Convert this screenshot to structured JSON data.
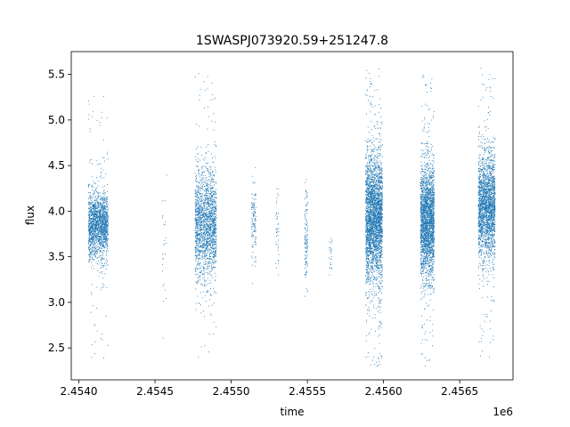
{
  "chart_data": {
    "type": "scatter",
    "title": "1SWASPJ073920.59+251247.8",
    "xlabel": "time",
    "ylabel": "flux",
    "x_offset_label": "1e6",
    "xlim": [
      2453950,
      2456850
    ],
    "ylim": [
      2.15,
      5.75
    ],
    "x_ticks": [
      2454000,
      2454500,
      2455000,
      2455500,
      2456000,
      2456500
    ],
    "x_tick_labels": [
      "2.4540",
      "2.4545",
      "2.4550",
      "2.4555",
      "2.4560",
      "2.4565"
    ],
    "y_ticks": [
      2.5,
      3.0,
      3.5,
      4.0,
      4.5,
      5.0,
      5.5
    ],
    "y_tick_labels": [
      "2.5",
      "3.0",
      "3.5",
      "4.0",
      "4.5",
      "5.0",
      "5.5"
    ],
    "grid": false,
    "legend": "none",
    "marker_color": "#1f77b4",
    "clusters": [
      {
        "x_range": [
          2454060,
          2454190
        ],
        "center": 3.85,
        "spread": 0.18,
        "y_min": 2.35,
        "y_max": 5.3,
        "count": 1700
      },
      {
        "x_range": [
          2454545,
          2454575
        ],
        "center": 3.7,
        "spread": 0.4,
        "y_min": 2.3,
        "y_max": 4.6,
        "count": 25
      },
      {
        "x_range": [
          2454760,
          2454900
        ],
        "center": 3.85,
        "spread": 0.3,
        "y_min": 2.4,
        "y_max": 5.58,
        "count": 1800
      },
      {
        "x_range": [
          2455130,
          2455160
        ],
        "center": 3.9,
        "spread": 0.2,
        "y_min": 3.15,
        "y_max": 4.5,
        "count": 120
      },
      {
        "x_range": [
          2455290,
          2455310
        ],
        "center": 3.85,
        "spread": 0.3,
        "y_min": 3.0,
        "y_max": 4.25,
        "count": 40
      },
      {
        "x_range": [
          2455480,
          2455500
        ],
        "center": 3.7,
        "spread": 0.25,
        "y_min": 2.65,
        "y_max": 4.35,
        "count": 120
      },
      {
        "x_range": [
          2455640,
          2455660
        ],
        "center": 3.5,
        "spread": 0.12,
        "y_min": 3.25,
        "y_max": 3.75,
        "count": 25
      },
      {
        "x_range": [
          2455880,
          2455990
        ],
        "center": 3.95,
        "spread": 0.35,
        "y_min": 2.3,
        "y_max": 5.58,
        "count": 3000
      },
      {
        "x_range": [
          2456240,
          2456330
        ],
        "center": 3.9,
        "spread": 0.3,
        "y_min": 2.3,
        "y_max": 5.5,
        "count": 2400
      },
      {
        "x_range": [
          2456620,
          2456730
        ],
        "center": 4.05,
        "spread": 0.28,
        "y_min": 2.35,
        "y_max": 5.58,
        "count": 2200
      }
    ]
  }
}
